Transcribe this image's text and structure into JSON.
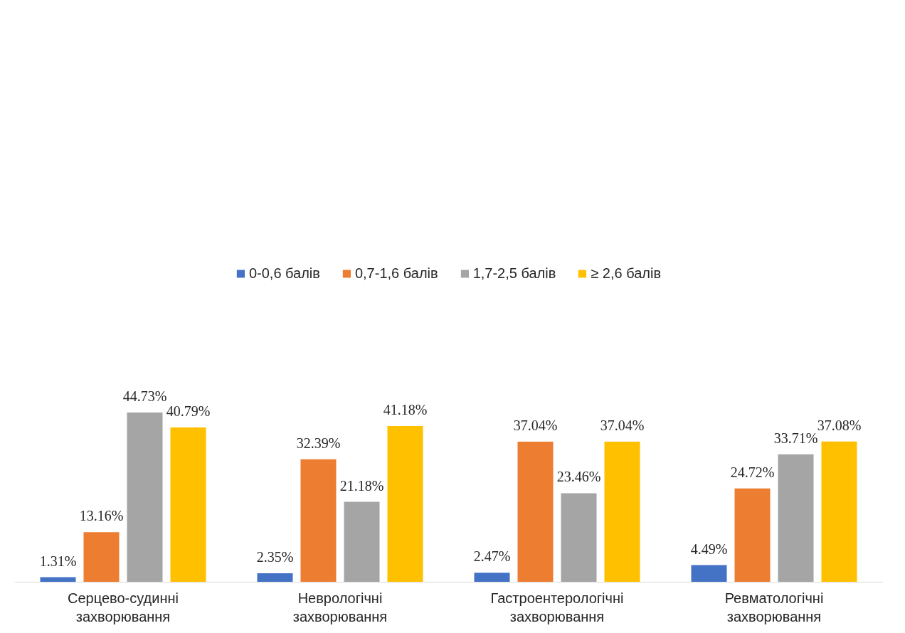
{
  "chart_data": {
    "type": "bar",
    "categories": [
      "Серцево-судинні захворювання",
      "Неврологічні захворювання",
      "Гастроентерологічні захворювання",
      "Ревматологічні захворювання"
    ],
    "series": [
      {
        "name": "0-0,6 балів",
        "color": "#4472c4",
        "values": [
          1.31,
          2.35,
          2.47,
          4.49
        ],
        "value_labels": [
          "1.31%",
          "2.35%",
          "2.47%",
          "4.49%"
        ]
      },
      {
        "name": "0,7-1,6 балів",
        "color": "#ed7d31",
        "values": [
          13.16,
          32.39,
          37.04,
          24.72
        ],
        "value_labels": [
          "13.16%",
          "32.39%",
          "37.04%",
          "24.72%"
        ]
      },
      {
        "name": "1,7-2,5 балів",
        "color": "#a5a5a5",
        "values": [
          44.73,
          21.18,
          23.46,
          33.71
        ],
        "value_labels": [
          "44.73%",
          "21.18%",
          "23.46%",
          "33.71%"
        ]
      },
      {
        "name": "≥ 2,6 балів",
        "color": "#ffc000",
        "values": [
          40.79,
          41.18,
          37.04,
          37.08
        ],
        "value_labels": [
          "40.79%",
          "41.18%",
          "37.04%",
          "37.08%"
        ]
      }
    ],
    "legend": "top",
    "grid": false
  }
}
